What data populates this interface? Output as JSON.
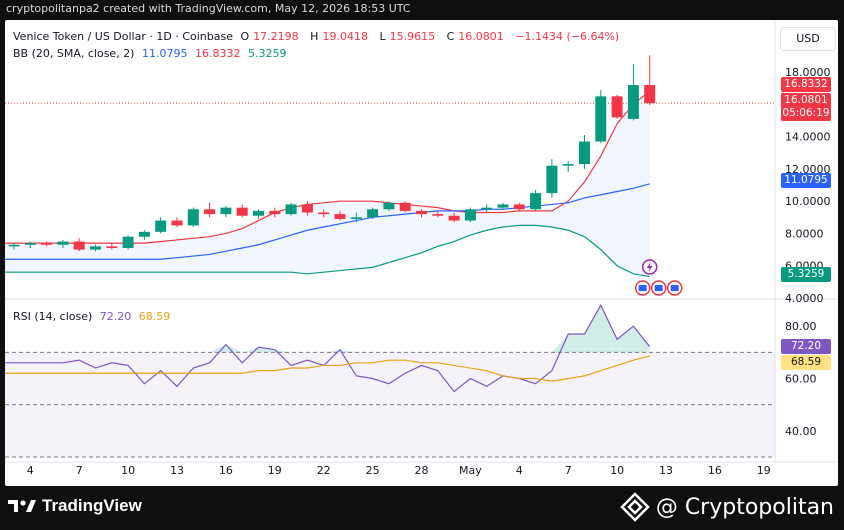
{
  "header": {
    "text": "cryptopolitanpa2 created with TradingView.com, May 12, 2026 18:53 UTC"
  },
  "legend": {
    "symbol": "Venice Token / US Dollar · 1D · Coinbase",
    "o_label": "O",
    "o": "17.2198",
    "h_label": "H",
    "h": "19.0418",
    "l_label": "L",
    "l": "15.9615",
    "c_label": "C",
    "c": "16.0801",
    "change": "−1.1434 (−6.64%)",
    "bb_label": "BB (20, SMA, close, 2)",
    "bb_basis": "11.0795",
    "bb_upper": "16.8332",
    "bb_lower": "5.3259",
    "rsi_label": "RSI (14, close)",
    "rsi_value": "72.20",
    "rsi_ma": "68.59"
  },
  "currency_button": "USD",
  "badges": {
    "upper": "16.8332",
    "price": "16.0801",
    "countdown": "05:06:19",
    "basis": "11.0795",
    "lower": "5.3259",
    "rsi": "72.20",
    "rsi_ma": "68.59"
  },
  "colors": {
    "up": "#089981",
    "down": "#f23645",
    "bb_basis": "#2962ff",
    "bb_upper": "#f23645",
    "bb_lower": "#089981",
    "rsi": "#7e57c2",
    "rsi_ma": "#e8a317"
  },
  "footer": {
    "tradingview": "TradingView",
    "cryptopolitan": "@ Cryptopolitan"
  },
  "chart_data": [
    {
      "type": "candlestick",
      "title": "Venice Token / US Dollar · 1D · Coinbase",
      "y_ticks": [
        "4.0000",
        "6.0000",
        "8.0000",
        "10.0000",
        "12.0000",
        "14.0000",
        "16.0000",
        "18.0000"
      ],
      "ylim": [
        4,
        19
      ],
      "x_ticks": [
        "4",
        "7",
        "10",
        "13",
        "16",
        "19",
        "22",
        "25",
        "28",
        "May",
        "4",
        "7",
        "10",
        "13",
        "16",
        "19"
      ],
      "candles_ohlc": [
        [
          7.2,
          7.4,
          7.0,
          7.3
        ],
        [
          7.3,
          7.5,
          7.1,
          7.4
        ],
        [
          7.4,
          7.5,
          7.2,
          7.3
        ],
        [
          7.3,
          7.6,
          7.1,
          7.5
        ],
        [
          7.5,
          7.7,
          6.9,
          7.0
        ],
        [
          7.0,
          7.3,
          6.9,
          7.2
        ],
        [
          7.2,
          7.4,
          7.0,
          7.1
        ],
        [
          7.1,
          7.9,
          7.0,
          7.8
        ],
        [
          7.8,
          8.2,
          7.6,
          8.1
        ],
        [
          8.1,
          9.0,
          8.0,
          8.8
        ],
        [
          8.8,
          9.0,
          8.4,
          8.5
        ],
        [
          8.5,
          9.6,
          8.4,
          9.5
        ],
        [
          9.5,
          9.9,
          9.0,
          9.2
        ],
        [
          9.2,
          9.7,
          9.0,
          9.6
        ],
        [
          9.6,
          9.8,
          9.0,
          9.1
        ],
        [
          9.1,
          9.5,
          8.9,
          9.4
        ],
        [
          9.4,
          9.6,
          9.0,
          9.2
        ],
        [
          9.2,
          9.9,
          9.1,
          9.8
        ],
        [
          9.8,
          10.0,
          9.1,
          9.3
        ],
        [
          9.3,
          9.5,
          9.0,
          9.2
        ],
        [
          9.2,
          9.4,
          8.8,
          8.9
        ],
        [
          8.9,
          9.3,
          8.7,
          9.0
        ],
        [
          9.0,
          9.6,
          8.9,
          9.5
        ],
        [
          9.5,
          10.0,
          9.4,
          9.9
        ],
        [
          9.9,
          10.0,
          9.3,
          9.4
        ],
        [
          9.4,
          9.5,
          9.0,
          9.2
        ],
        [
          9.2,
          9.4,
          9.0,
          9.1
        ],
        [
          9.1,
          9.3,
          8.7,
          8.8
        ],
        [
          8.8,
          9.6,
          8.7,
          9.5
        ],
        [
          9.5,
          9.8,
          9.3,
          9.6
        ],
        [
          9.6,
          9.9,
          9.5,
          9.8
        ],
        [
          9.8,
          9.9,
          9.4,
          9.5
        ],
        [
          9.5,
          10.7,
          9.4,
          10.5
        ],
        [
          10.5,
          12.6,
          10.2,
          12.2
        ],
        [
          12.2,
          12.5,
          11.8,
          12.3
        ],
        [
          12.3,
          14.1,
          12.0,
          13.7
        ],
        [
          13.7,
          16.9,
          13.6,
          16.5
        ],
        [
          16.5,
          16.6,
          15.1,
          15.2
        ],
        [
          15.1,
          18.5,
          15.0,
          17.2
        ],
        [
          17.2,
          19.04,
          15.96,
          16.08
        ]
      ],
      "bb_upper": [
        7.4,
        7.5,
        7.6,
        7.7,
        7.8,
        8.0,
        8.3,
        8.8,
        9.3,
        9.6,
        9.8,
        9.9,
        10.0,
        10.0,
        10.0,
        9.9,
        9.8,
        9.7,
        9.6,
        9.4,
        9.3,
        9.3,
        9.3,
        9.4,
        9.4,
        9.4,
        10.0,
        11.2,
        12.8,
        14.8,
        16.0,
        16.83
      ],
      "bb_basis": [
        6.4,
        6.5,
        6.6,
        6.7,
        6.9,
        7.1,
        7.3,
        7.6,
        7.9,
        8.2,
        8.4,
        8.6,
        8.8,
        9.0,
        9.1,
        9.2,
        9.3,
        9.4,
        9.4,
        9.4,
        9.5,
        9.5,
        9.6,
        9.7,
        9.8,
        9.9,
        10.2,
        10.4,
        10.6,
        10.8,
        11.08
      ],
      "bb_lower": [
        5.6,
        5.5,
        5.6,
        5.7,
        5.8,
        5.9,
        6.2,
        6.5,
        6.8,
        7.2,
        7.5,
        7.9,
        8.2,
        8.4,
        8.5,
        8.5,
        8.4,
        8.2,
        7.8,
        7.0,
        6.0,
        5.5,
        5.33
      ]
    },
    {
      "type": "line",
      "title": "RSI (14, close)",
      "y_ticks": [
        "40.00",
        "60.00",
        "80.00"
      ],
      "ylim": [
        30,
        90
      ],
      "bands": [
        30,
        50,
        70
      ],
      "series": [
        {
          "name": "RSI",
          "values": [
            66,
            67,
            64,
            66,
            65,
            58,
            63,
            57,
            64,
            66,
            73,
            66,
            72,
            71,
            65,
            67,
            65,
            71,
            61,
            60,
            58,
            62,
            65,
            63,
            55,
            60,
            57,
            61,
            60,
            58,
            63,
            77,
            77,
            88,
            75,
            80,
            72.2
          ]
        },
        {
          "name": "MA",
          "values": [
            62,
            62,
            63,
            63,
            64,
            64,
            65,
            65,
            66,
            66,
            67,
            67,
            66,
            66,
            65,
            64,
            63,
            61,
            60,
            60,
            59,
            60,
            61,
            63,
            65,
            67,
            68.59
          ]
        }
      ]
    }
  ]
}
